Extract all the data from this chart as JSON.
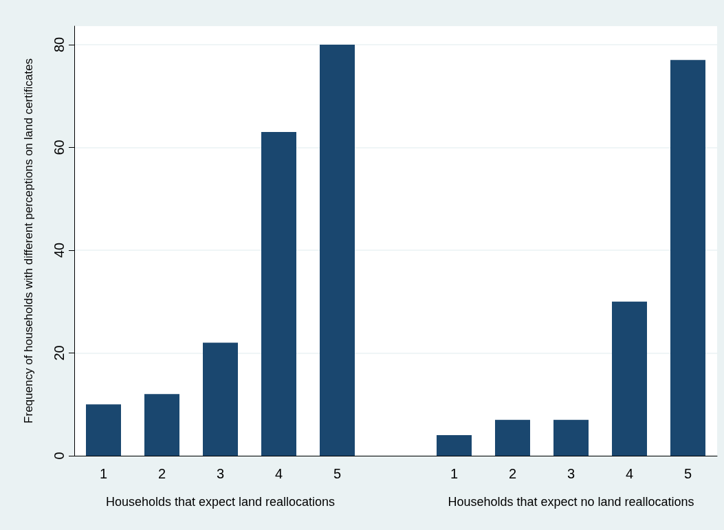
{
  "chart_data": {
    "type": "bar",
    "ylabel": "Frequency of households with different perceptions on land certificates",
    "categories": [
      "1",
      "2",
      "3",
      "4",
      "5",
      null,
      "1",
      "2",
      "3",
      "4",
      "5"
    ],
    "values": [
      10,
      12,
      22,
      63,
      80,
      null,
      4,
      7,
      7,
      30,
      77
    ],
    "color": "#1a476f",
    "ylim": [
      0,
      83.6
    ],
    "yticks": [
      0,
      20,
      40,
      60,
      80
    ],
    "grid": "y",
    "annotations": [
      "Households that expect land reallocations",
      "Households that expect no land reallocations"
    ]
  }
}
